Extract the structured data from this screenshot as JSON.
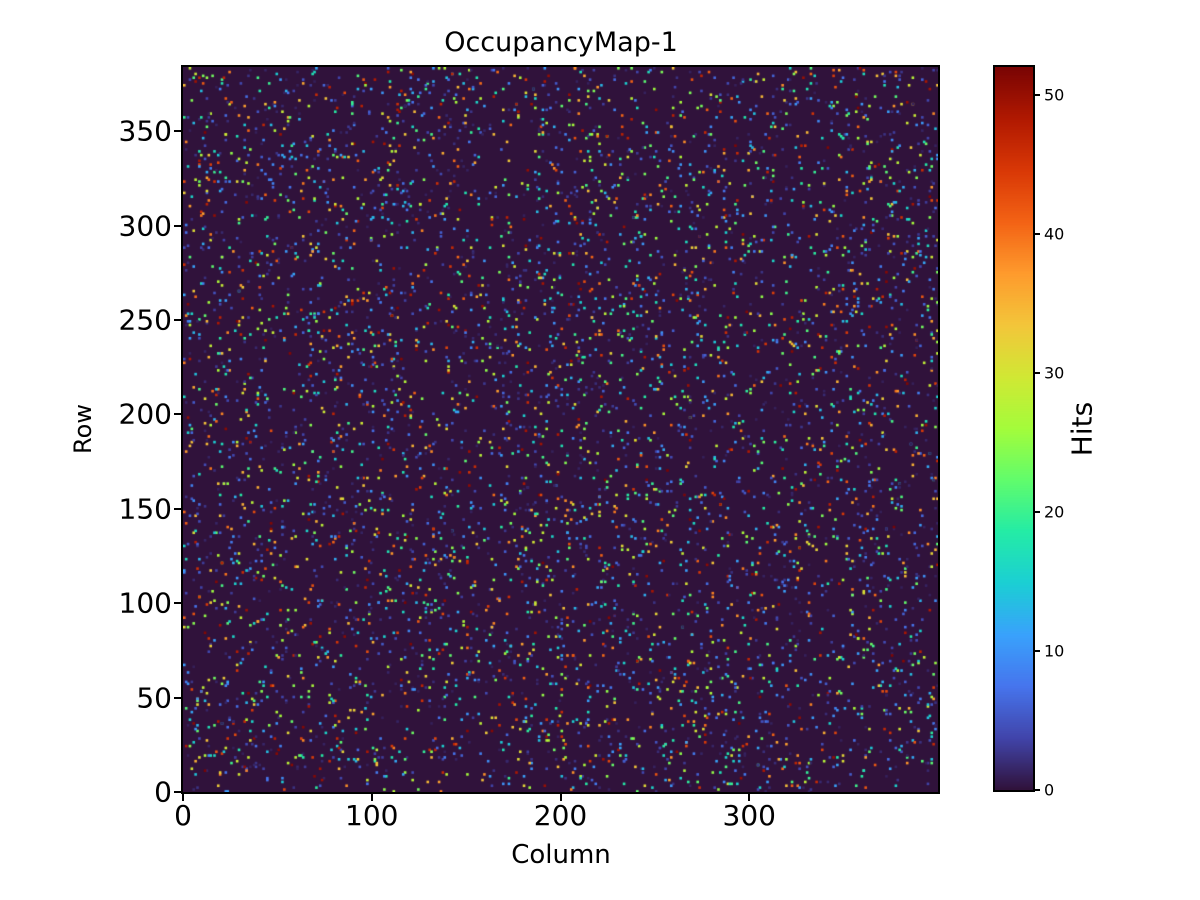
{
  "figure": {
    "background": "#ffffff"
  },
  "chart_data": {
    "type": "heatmap",
    "title": "OccupancyMap-1",
    "xlabel": "Column",
    "ylabel": "Row",
    "colorbar_label": "Hits",
    "xlim": [
      0,
      400
    ],
    "ylim": [
      0,
      384
    ],
    "x_ticks": [
      0,
      100,
      200,
      300
    ],
    "y_ticks": [
      0,
      50,
      100,
      150,
      200,
      250,
      300,
      350
    ],
    "colorbar_ticks": [
      0,
      10,
      20,
      30,
      40,
      50
    ],
    "vmin": 0,
    "vmax": 52,
    "colormap": "turbo",
    "colormap_stops": [
      "#30123b",
      "#4145ab",
      "#4675ed",
      "#39a2fc",
      "#1bcfd4",
      "#24eca6",
      "#61fc6c",
      "#a4fc3b",
      "#d1e834",
      "#f3c63a",
      "#fe9b2d",
      "#f36315",
      "#d93806",
      "#b11901",
      "#7a0403"
    ],
    "grid": {
      "cols": 400,
      "rows": 384
    },
    "background_color": "#30123b",
    "frame_color": "#000000",
    "hits": {
      "count": 6000,
      "value_min": 1,
      "value_max": 52,
      "value_power": 2.0,
      "seed": 42,
      "distribution": "uniform-random-positions"
    }
  }
}
